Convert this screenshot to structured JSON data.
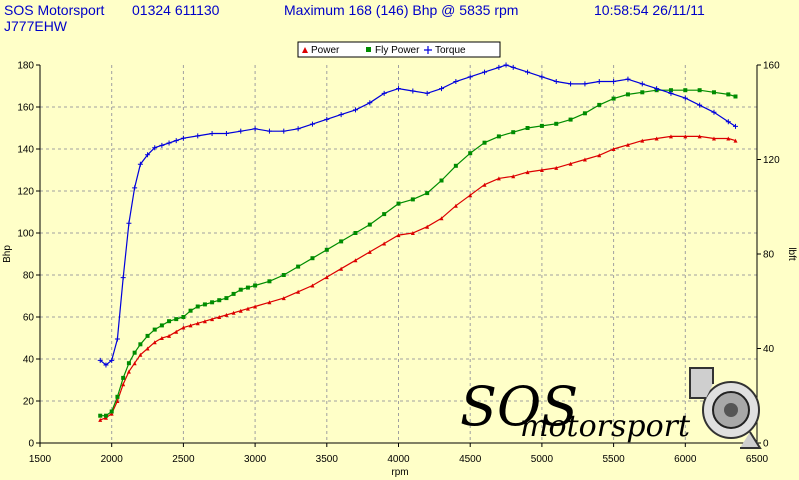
{
  "header": {
    "company": "SOS Motorsport",
    "phone": "01324 611130",
    "maximum": "Maximum 168 (146) Bhp @ 5835 rpm",
    "datetime": "10:58:54 26/11/11",
    "registration": "J777EHW"
  },
  "logo": {
    "line1": "SOS",
    "line2": "motorsport"
  },
  "chart_data": {
    "type": "line",
    "xlabel": "rpm",
    "ylabel_left": "Bhp",
    "ylabel_right": "lbft",
    "xlim": [
      1500,
      6500
    ],
    "ylim_left": [
      0,
      180
    ],
    "ylim_right": [
      0,
      160
    ],
    "x_ticks": [
      "1500",
      "2000",
      "2500",
      "3000",
      "3500",
      "4000",
      "4500",
      "5000",
      "5500",
      "6000",
      "6500"
    ],
    "y_left_ticks": [
      "0",
      "20",
      "40",
      "60",
      "80",
      "100",
      "120",
      "140",
      "160",
      "180"
    ],
    "y_right_ticks": [
      "0",
      "40",
      "80",
      "120",
      "160"
    ],
    "grid": true,
    "legend_position": "top",
    "legend": [
      "Power",
      "Fly Power",
      "Torque"
    ],
    "series": [
      {
        "name": "Power",
        "axis": "left",
        "color": "#DC0000",
        "marker": "triangle",
        "x": [
          1920,
          1960,
          2000,
          2040,
          2080,
          2120,
          2160,
          2200,
          2250,
          2300,
          2350,
          2400,
          2450,
          2500,
          2550,
          2600,
          2650,
          2700,
          2750,
          2800,
          2850,
          2900,
          2950,
          3000,
          3100,
          3200,
          3300,
          3400,
          3500,
          3600,
          3700,
          3800,
          3900,
          4000,
          4100,
          4200,
          4300,
          4400,
          4500,
          4600,
          4700,
          4800,
          4900,
          5000,
          5100,
          5200,
          5300,
          5400,
          5500,
          5600,
          5700,
          5800,
          5900,
          6000,
          6100,
          6200,
          6300,
          6350
        ],
        "y": [
          11,
          12,
          14,
          20,
          28,
          34,
          38,
          42,
          45,
          48,
          50,
          51,
          53,
          55,
          56,
          57,
          58,
          59,
          60,
          61,
          62,
          63,
          64,
          65,
          67,
          69,
          72,
          75,
          79,
          83,
          87,
          91,
          95,
          99,
          100,
          103,
          107,
          113,
          118,
          123,
          126,
          127,
          129,
          130,
          131,
          133,
          135,
          137,
          140,
          142,
          144,
          145,
          146,
          146,
          146,
          145,
          145,
          144
        ]
      },
      {
        "name": "Fly Power",
        "axis": "left",
        "color": "#008C00",
        "marker": "square",
        "x": [
          1920,
          1960,
          2000,
          2040,
          2080,
          2120,
          2160,
          2200,
          2250,
          2300,
          2350,
          2400,
          2450,
          2500,
          2550,
          2600,
          2650,
          2700,
          2750,
          2800,
          2850,
          2900,
          2950,
          3000,
          3100,
          3200,
          3300,
          3400,
          3500,
          3600,
          3700,
          3800,
          3900,
          4000,
          4100,
          4200,
          4300,
          4400,
          4500,
          4600,
          4700,
          4800,
          4900,
          5000,
          5100,
          5200,
          5300,
          5400,
          5500,
          5600,
          5700,
          5800,
          5900,
          6000,
          6100,
          6200,
          6300,
          6350
        ],
        "y": [
          13,
          13,
          15,
          22,
          31,
          38,
          43,
          47,
          51,
          54,
          56,
          58,
          59,
          60,
          63,
          65,
          66,
          67,
          68,
          69,
          71,
          73,
          74,
          75,
          77,
          80,
          84,
          88,
          92,
          96,
          100,
          104,
          109,
          114,
          116,
          119,
          125,
          132,
          138,
          143,
          146,
          148,
          150,
          151,
          152,
          154,
          157,
          161,
          164,
          166,
          167,
          168,
          168,
          168,
          168,
          167,
          166,
          165
        ]
      },
      {
        "name": "Torque",
        "axis": "right",
        "color": "#0000DC",
        "marker": "plus",
        "x": [
          1920,
          1960,
          2000,
          2040,
          2080,
          2120,
          2160,
          2200,
          2250,
          2300,
          2350,
          2400,
          2450,
          2500,
          2600,
          2700,
          2800,
          2900,
          3000,
          3100,
          3200,
          3300,
          3400,
          3500,
          3600,
          3700,
          3800,
          3900,
          4000,
          4100,
          4200,
          4300,
          4400,
          4500,
          4600,
          4700,
          4750,
          4800,
          4900,
          5000,
          5100,
          5200,
          5300,
          5400,
          5500,
          5600,
          5700,
          5800,
          5900,
          6000,
          6100,
          6200,
          6300,
          6350
        ],
        "y": [
          35,
          33,
          35,
          44,
          70,
          93,
          108,
          118,
          122,
          125,
          126,
          127,
          128,
          129,
          130,
          131,
          131,
          132,
          133,
          132,
          132,
          133,
          135,
          137,
          139,
          141,
          144,
          148,
          150,
          149,
          148,
          150,
          153,
          155,
          157,
          159,
          160,
          159,
          157,
          155,
          153,
          152,
          152,
          153,
          153,
          154,
          152,
          150,
          148,
          146,
          143,
          140,
          136,
          134
        ]
      }
    ]
  }
}
